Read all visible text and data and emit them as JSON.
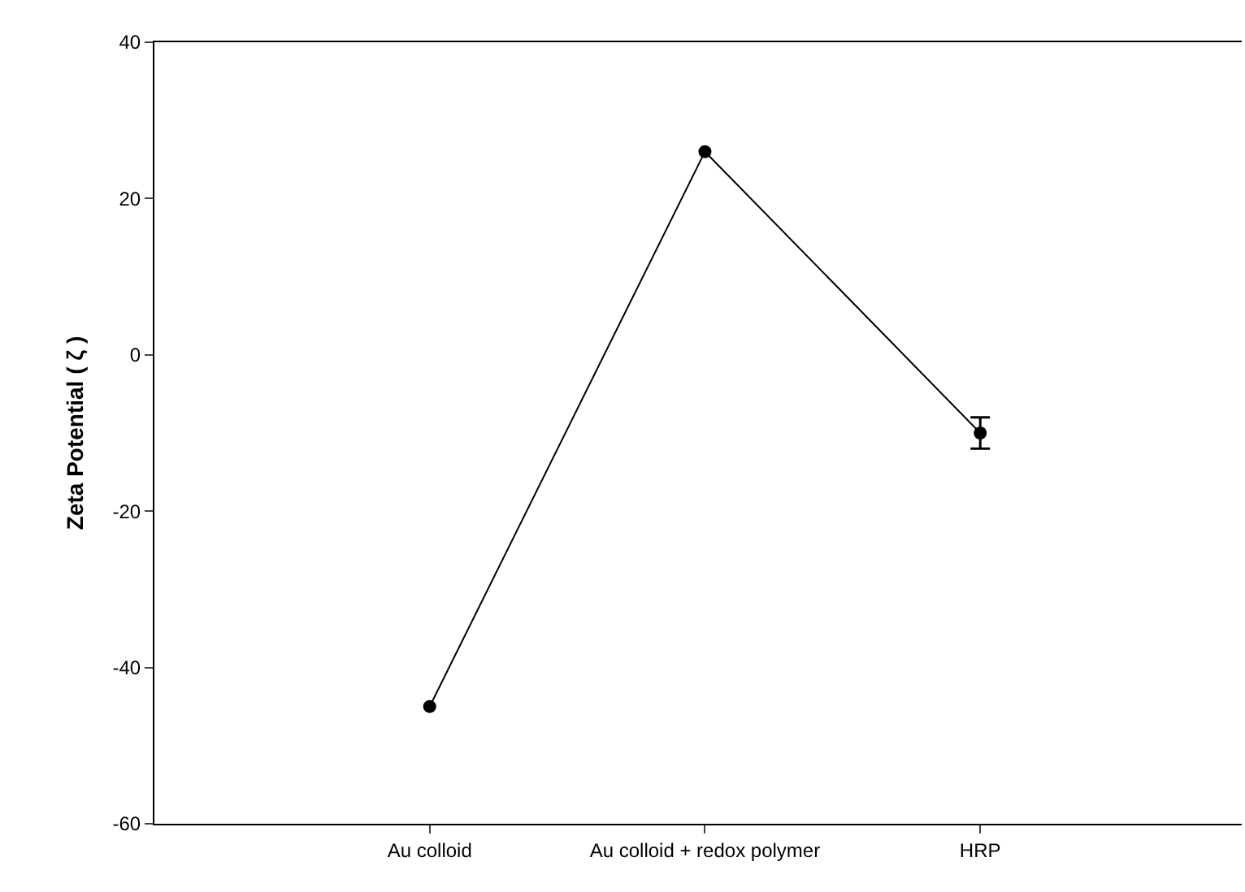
{
  "chart_data": {
    "type": "line",
    "ylabel": "Zeta Potential ( ζ )",
    "categories": [
      "Au colloid",
      "Au colloid + redox polymer",
      "HRP"
    ],
    "series": [
      {
        "color": "#000000",
        "values": [
          -45,
          26,
          -10
        ],
        "errors": [
          null,
          null,
          2
        ]
      }
    ],
    "ylim": [
      -60,
      40
    ],
    "yticks": [
      -60,
      -40,
      -20,
      0,
      20,
      40
    ],
    "marker": "circle",
    "line_style": "solid"
  }
}
